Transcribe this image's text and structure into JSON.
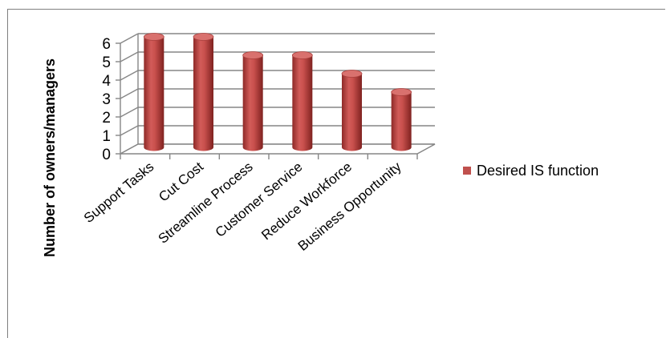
{
  "caption": "",
  "chart_data": {
    "type": "bar",
    "title": "",
    "xlabel": "",
    "ylabel": "Number of owners/managers",
    "categories": [
      "Support Tasks",
      "Cut Cost",
      "Streamline Process",
      "Customer Service",
      "Reduce Workforce",
      "Business Opportunity"
    ],
    "series": [
      {
        "name": "Desired IS function",
        "values": [
          6,
          6,
          5,
          5,
          4,
          3
        ],
        "color": "#c0504d"
      }
    ],
    "ylim": [
      0,
      6
    ],
    "yticks": [
      0,
      1,
      2,
      3,
      4,
      5,
      6
    ],
    "grid": true,
    "style": "3d-cylinder",
    "legend_position": "right"
  }
}
